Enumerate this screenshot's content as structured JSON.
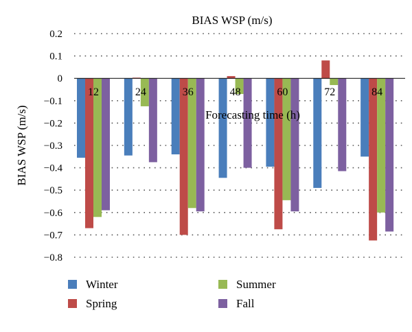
{
  "chart_data": {
    "type": "bar",
    "title": "BIAS WSP (m/s)",
    "xlabel": "Forecasting time (h)",
    "ylabel": "BIAS WSP (m/s)",
    "categories": [
      "12",
      "24",
      "36",
      "48",
      "60",
      "72",
      "84"
    ],
    "ylim": [
      -0.8,
      0.2
    ],
    "yticks": [
      0.2,
      0.1,
      0,
      -0.1,
      -0.2,
      -0.3,
      -0.4,
      -0.5,
      -0.6,
      -0.7,
      -0.8
    ],
    "ytick_labels": [
      "0.2",
      "0.1",
      "0",
      "−0.1",
      "−0.2",
      "−0.3",
      "−0.4",
      "−0.5",
      "−0.6",
      "−0.7",
      "−0.8"
    ],
    "grid": "horizontal dotted",
    "legend_position": "bottom",
    "series": [
      {
        "name": "Winter",
        "color": "#4a7ebb",
        "values": [
          -0.355,
          -0.345,
          -0.34,
          -0.445,
          -0.395,
          -0.49,
          -0.35
        ]
      },
      {
        "name": "Spring",
        "color": "#be4b48",
        "values": [
          -0.67,
          0.003,
          -0.7,
          0.01,
          -0.675,
          0.08,
          -0.725
        ]
      },
      {
        "name": "Summer",
        "color": "#98b954",
        "values": [
          -0.62,
          -0.125,
          -0.58,
          -0.07,
          -0.545,
          -0.03,
          -0.6
        ]
      },
      {
        "name": "Fall",
        "color": "#7d60a0",
        "values": [
          -0.59,
          -0.375,
          -0.595,
          -0.4,
          -0.595,
          -0.415,
          -0.685
        ]
      }
    ]
  }
}
